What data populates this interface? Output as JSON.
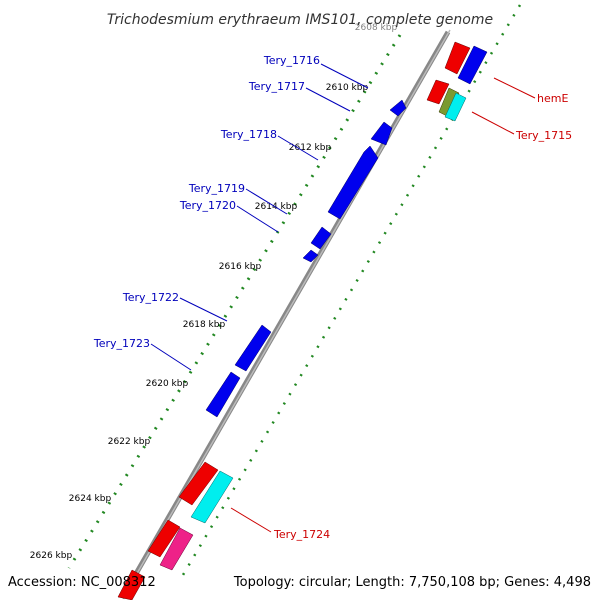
{
  "title": "Trichodesmium erythraeum IMS101, complete genome",
  "accession": "Accession: NC_008312",
  "topology": "Topology: circular; Length: 7,750,108 bp; Genes: 4,498",
  "ticks": [
    {
      "label": "2608 kbp",
      "faded": true
    },
    {
      "label": "2610 kbp"
    },
    {
      "label": "2612 kbp"
    },
    {
      "label": "2614 kbp"
    },
    {
      "label": "2616 kbp"
    },
    {
      "label": "2618 kbp"
    },
    {
      "label": "2620 kbp"
    },
    {
      "label": "2622 kbp"
    },
    {
      "label": "2624 kbp"
    },
    {
      "label": "2626 kbp"
    }
  ],
  "gene_labels": {
    "forward": [
      "Tery_1716",
      "Tery_1717",
      "Tery_1718",
      "Tery_1719",
      "Tery_1720",
      "Tery_1722",
      "Tery_1723"
    ],
    "reverse": [
      "hemE",
      "Tery_1715",
      "Tery_1724"
    ]
  },
  "colors": {
    "forward_gene": "#0000ee",
    "reverse_gene": "#ee0000",
    "label_blue": "#0000bb",
    "label_red": "#cc0000",
    "cyan_gene": "#00eeee",
    "olive_gene": "#7a9a30",
    "magenta_gene": "#ee2288",
    "tick_green": "#228822",
    "backbone": "#888888"
  }
}
